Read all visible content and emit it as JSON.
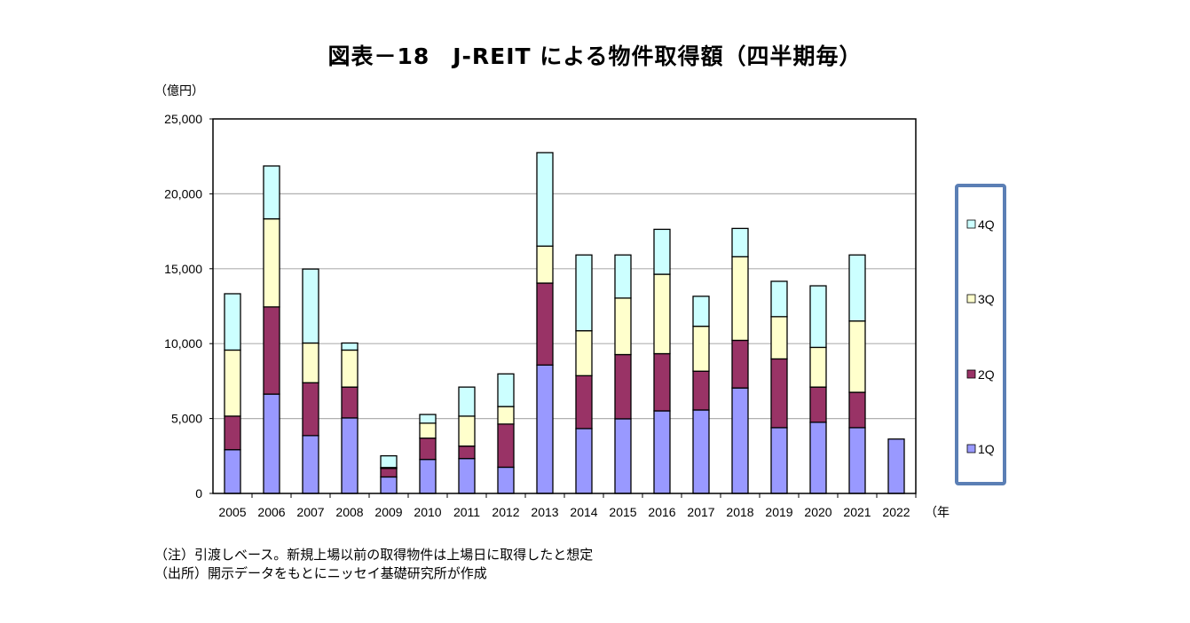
{
  "chart_data": {
    "type": "bar",
    "stacked": true,
    "title": "図表－18　J-REIT による物件取得額（四半期毎）",
    "ylabel": "（億円）",
    "xlabel": "（年",
    "ylim": [
      0,
      25000
    ],
    "yticks": [
      "0",
      "5,000",
      "10,000",
      "15,000",
      "20,000",
      "25,000"
    ],
    "grid": true,
    "legend_position": "right",
    "categories": [
      "2005",
      "2006",
      "2007",
      "2008",
      "2009",
      "2010",
      "2011",
      "2012",
      "2013",
      "2014",
      "2015",
      "2016",
      "2017",
      "2018",
      "2019",
      "2020",
      "2021",
      "2022"
    ],
    "series": [
      {
        "name": "1Q",
        "color": "#9999ff",
        "values": [
          2920,
          6630,
          3860,
          5040,
          1100,
          2270,
          2330,
          1750,
          8570,
          4330,
          4980,
          5510,
          5570,
          7040,
          4390,
          4750,
          4390,
          3630
        ]
      },
      {
        "name": "2Q",
        "color": "#993366",
        "values": [
          2240,
          5820,
          3530,
          2060,
          570,
          1420,
          830,
          2880,
          5470,
          3530,
          4290,
          3820,
          2590,
          3180,
          4590,
          2350,
          2360,
          0
        ]
      },
      {
        "name": "3Q",
        "color": "#ffffcc",
        "values": [
          4410,
          5880,
          2650,
          2470,
          60,
          1000,
          2000,
          1170,
          2470,
          3000,
          3770,
          5300,
          3000,
          5580,
          2820,
          2650,
          4760,
          0
        ]
      },
      {
        "name": "4Q",
        "color": "#ccffff",
        "values": [
          3760,
          3530,
          4940,
          470,
          780,
          580,
          1940,
          2180,
          6240,
          5060,
          2880,
          3000,
          2000,
          1890,
          2360,
          4110,
          4410,
          0
        ]
      }
    ]
  },
  "notes": {
    "note1": "（注）引渡しベース。新規上場以前の取得物件は上場日に取得したと想定",
    "note2": "（出所）開示データをもとにニッセイ基礎研究所が作成"
  },
  "legend_border_color": "#5b7fb5"
}
